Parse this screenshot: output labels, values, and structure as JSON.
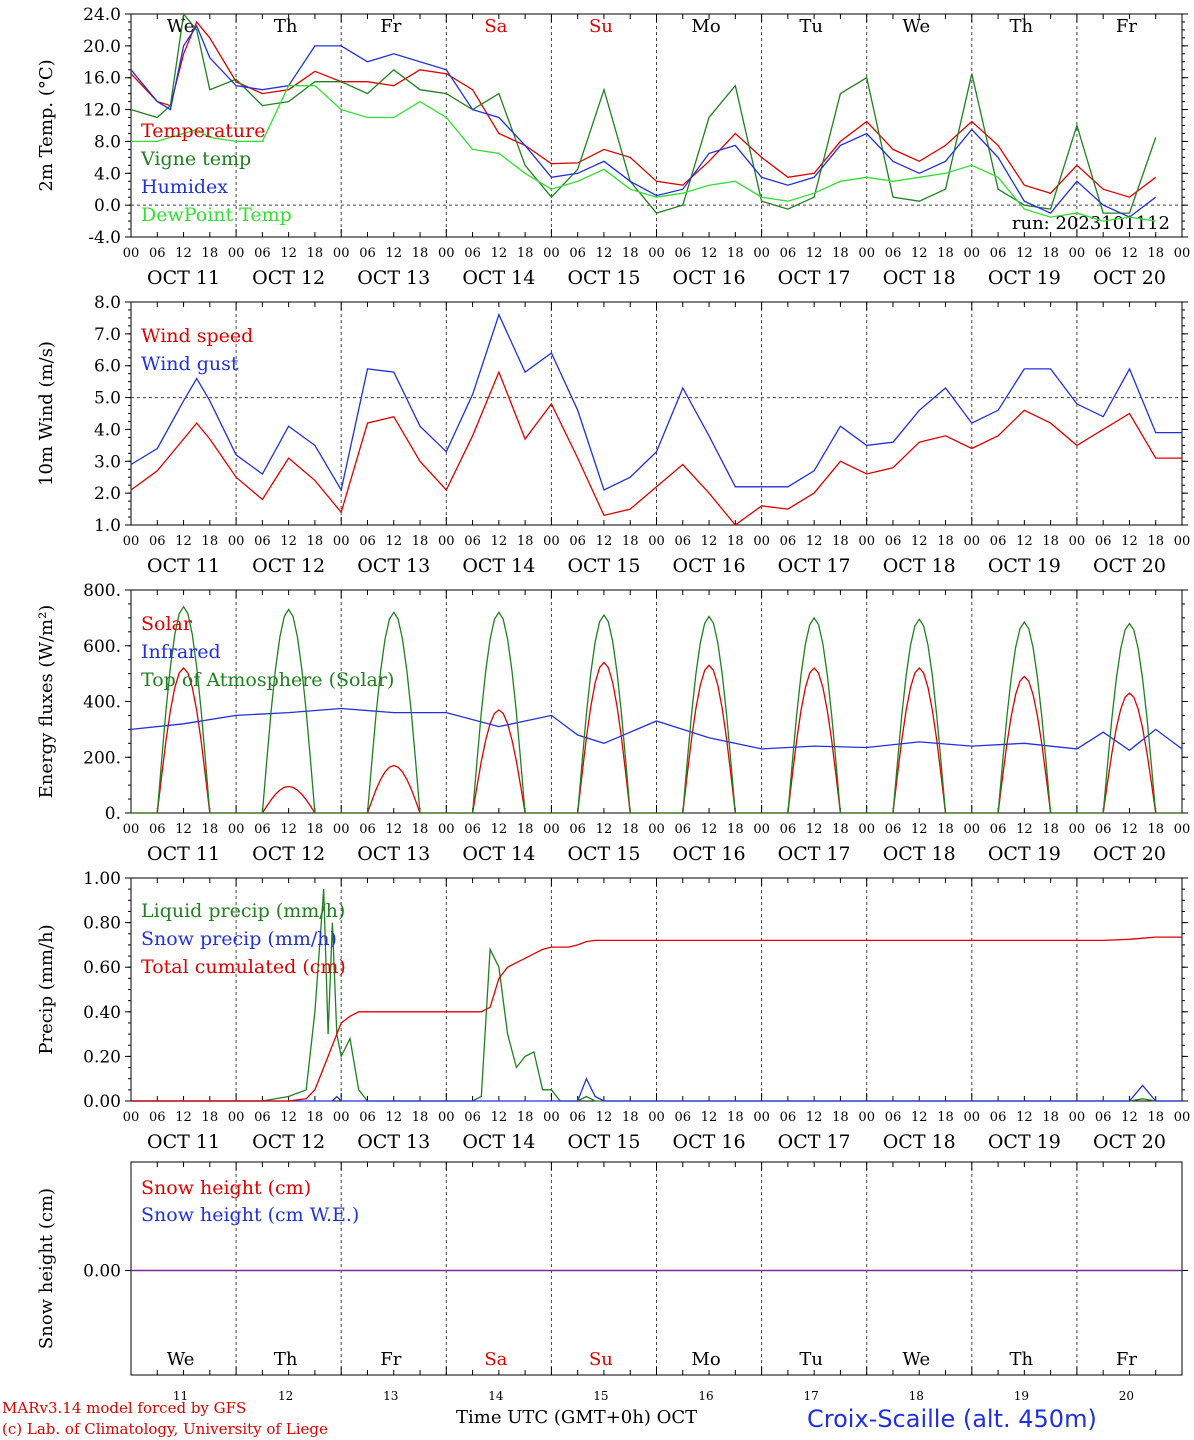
{
  "footer": {
    "model_line": "MARv3.14 model forced by GFS",
    "lab_line": "(c) Lab. of Climatology, University of Liege",
    "xlabel": "Time UTC (GMT+0h) OCT",
    "station": "Croix-Scaille (alt. 450m)"
  },
  "run_label": "run: 2023101112",
  "days": {
    "weekday_labels": [
      "We",
      "Th",
      "Fr",
      "Sa",
      "Su",
      "Mo",
      "Tu",
      "We",
      "Th",
      "Fr"
    ],
    "weekend_color": "#e00000",
    "date_labels": [
      "OCT 11",
      "OCT 12",
      "OCT 13",
      "OCT 14",
      "OCT 15",
      "OCT 16",
      "OCT 17",
      "OCT 18",
      "OCT 19",
      "OCT 20"
    ],
    "day_numbers": [
      "11",
      "12",
      "13",
      "14",
      "15",
      "16",
      "17",
      "18",
      "19",
      "20"
    ],
    "hour_ticks": [
      "00",
      "06",
      "12",
      "18"
    ],
    "final_tick": "00"
  },
  "chart_data": [
    {
      "type": "line",
      "ylabel": "2m Temp. (°C)",
      "ylim": [
        -4,
        24
      ],
      "yticks": [
        "-4.0",
        "0.0",
        "4.0",
        "8.0",
        "12.0",
        "16.0",
        "20.0",
        "24.0"
      ],
      "ytick_values": [
        -4,
        0,
        4,
        8,
        12,
        16,
        20,
        24
      ],
      "reference_line": 0,
      "x_hours": [
        0,
        6,
        9,
        12,
        15,
        18,
        24,
        30,
        36,
        42,
        48,
        54,
        60,
        66,
        72,
        78,
        84,
        90,
        96,
        102,
        108,
        114,
        120,
        126,
        132,
        138,
        144,
        150,
        156,
        162,
        168,
        174,
        180,
        186,
        192,
        198,
        204,
        210,
        216,
        222,
        228,
        234
      ],
      "series": [
        {
          "name": "Temperature",
          "color": "#e00000",
          "values": [
            16.5,
            13,
            12.5,
            19,
            23,
            21,
            15.5,
            14,
            14.5,
            16.8,
            15.5,
            15.5,
            15,
            17,
            16.5,
            14.5,
            9,
            7.5,
            5.2,
            5.3,
            7,
            6,
            3,
            2.5,
            5.5,
            9,
            6,
            3.5,
            4,
            8,
            10.5,
            7,
            5.5,
            7.5,
            10.5,
            7.5,
            2.5,
            1.5,
            5,
            2,
            1,
            3.5
          ]
        },
        {
          "name": "Vigne temp",
          "color": "#208020",
          "values": [
            12,
            11,
            12.5,
            24,
            22,
            14.5,
            15.8,
            12.5,
            13,
            15.5,
            15.5,
            14,
            17,
            14.5,
            14,
            12,
            14,
            5,
            1,
            4.5,
            14.5,
            3,
            -1,
            0,
            11,
            15,
            0.5,
            -0.5,
            1,
            14,
            16,
            1,
            0.5,
            2,
            16.5,
            2,
            0,
            -0.5,
            10,
            -1,
            -1,
            8.5
          ]
        },
        {
          "name": "Humidex",
          "color": "#2030e0",
          "values": [
            17,
            13,
            12,
            20,
            22.5,
            18.5,
            15,
            14.5,
            15,
            20,
            20,
            18,
            19,
            18,
            17,
            12,
            11,
            7.5,
            3.5,
            4,
            5.5,
            3,
            1.2,
            2,
            6.5,
            7.5,
            3.5,
            2.5,
            3.5,
            7.5,
            9,
            5.5,
            4,
            5.5,
            9.5,
            6,
            0.5,
            -1,
            3,
            0,
            -1.5,
            1
          ]
        },
        {
          "name": "DewPoint Temp",
          "color": "#30e030",
          "values": [
            8,
            8,
            8.5,
            9,
            9.5,
            8.5,
            8,
            8,
            15,
            15,
            12,
            11,
            11,
            13,
            11,
            7,
            6.5,
            4,
            2,
            3,
            4.5,
            2,
            1,
            1.5,
            2.5,
            3,
            1,
            0.5,
            1.5,
            3,
            3.5,
            3,
            3.5,
            4,
            5,
            3.5,
            -0.5,
            -1.5,
            -1,
            -2,
            -1.5,
            -2
          ]
        }
      ]
    },
    {
      "type": "line",
      "ylabel": "10m Wind (m/s)",
      "ylim": [
        1,
        8
      ],
      "yticks": [
        "1.0",
        "2.0",
        "3.0",
        "4.0",
        "5.0",
        "6.0",
        "7.0",
        "8.0"
      ],
      "ytick_values": [
        1,
        2,
        3,
        4,
        5,
        6,
        7,
        8
      ],
      "reference_line": 5,
      "x_hours": [
        0,
        6,
        12,
        15,
        18,
        24,
        30,
        36,
        42,
        48,
        54,
        60,
        66,
        72,
        78,
        84,
        90,
        96,
        102,
        108,
        114,
        120,
        126,
        132,
        138,
        144,
        150,
        156,
        162,
        168,
        174,
        180,
        186,
        192,
        198,
        204,
        210,
        216,
        222,
        228,
        234,
        240
      ],
      "series": [
        {
          "name": "Wind speed",
          "color": "#e00000",
          "values": [
            2.1,
            2.7,
            3.7,
            4.2,
            3.7,
            2.5,
            1.8,
            3.1,
            2.4,
            1.4,
            4.2,
            4.4,
            3,
            2.1,
            3.8,
            5.8,
            3.7,
            4.8,
            3.1,
            1.3,
            1.5,
            2.2,
            2.9,
            2,
            1,
            1.6,
            1.5,
            2,
            3,
            2.6,
            2.8,
            3.6,
            3.8,
            3.4,
            3.8,
            4.6,
            4.2,
            3.5,
            4,
            4.5,
            3.1,
            3.1
          ]
        },
        {
          "name": "Wind gust",
          "color": "#2030e0",
          "values": [
            2.9,
            3.4,
            4.9,
            5.6,
            4.9,
            3.2,
            2.6,
            4.1,
            3.5,
            2.1,
            5.9,
            5.8,
            4.1,
            3.3,
            5.1,
            7.6,
            5.8,
            6.4,
            4.6,
            2.1,
            2.5,
            3.3,
            5.3,
            3.8,
            2.2,
            2.2,
            2.2,
            2.7,
            4.1,
            3.5,
            3.6,
            4.6,
            5.3,
            4.2,
            4.6,
            5.9,
            5.9,
            4.8,
            4.4,
            5.9,
            3.9,
            3.9
          ]
        }
      ]
    },
    {
      "type": "line",
      "ylabel": "Energy fluxes (W/m²)",
      "ylim": [
        0,
        800
      ],
      "yticks": [
        "0.",
        "200.",
        "400.",
        "600.",
        "800."
      ],
      "ytick_values": [
        0,
        200,
        400,
        600,
        800
      ],
      "daily_peaks": {
        "peak_hour": 12,
        "half_width_hours": 6,
        "series": [
          {
            "name": "Solar",
            "color": "#e00000",
            "peaks": [
              520,
              95,
              170,
              370,
              540,
              530,
              520,
              520,
              490,
              430
            ]
          },
          {
            "name": "Infrared",
            "color": "#2030e0",
            "x_hours": [
              0,
              12,
              24,
              36,
              48,
              60,
              72,
              84,
              96,
              102,
              108,
              120,
              132,
              144,
              156,
              168,
              180,
              192,
              204,
              216,
              222,
              228,
              234,
              240
            ],
            "values": [
              300,
              320,
              350,
              360,
              375,
              360,
              360,
              310,
              350,
              280,
              250,
              330,
              270,
              230,
              240,
              235,
              255,
              240,
              250,
              230,
              290,
              225,
              300,
              230
            ]
          },
          {
            "name": "Top of Atmosphere (Solar)",
            "color": "#208020",
            "peaks": [
              740,
              730,
              720,
              720,
              710,
              705,
              700,
              695,
              685,
              680
            ]
          }
        ]
      }
    },
    {
      "type": "line",
      "ylabel": "Precip (mm/h)",
      "ylim": [
        0,
        1
      ],
      "yticks": [
        "0.00",
        "0.20",
        "0.40",
        "0.60",
        "0.80",
        "1.00"
      ],
      "ytick_values": [
        0,
        0.2,
        0.4,
        0.6,
        0.8,
        1
      ],
      "x_hours": [
        0,
        30,
        36,
        40,
        42,
        44,
        45,
        46,
        47,
        48,
        50,
        52,
        54,
        60,
        70,
        78,
        80,
        82,
        84,
        86,
        88,
        90,
        92,
        94,
        96,
        98,
        100,
        102,
        104,
        106,
        108,
        110,
        112,
        114,
        210,
        222,
        228,
        231,
        234,
        240
      ],
      "series": [
        {
          "name": "Liquid precip (mm/h)",
          "color": "#208020",
          "values": [
            0,
            0,
            0.02,
            0.05,
            0.4,
            0.95,
            0.3,
            0.8,
            0.3,
            0.2,
            0.28,
            0.05,
            0,
            0,
            0,
            0,
            0.02,
            0.68,
            0.6,
            0.3,
            0.15,
            0.2,
            0.22,
            0.05,
            0.05,
            0,
            0,
            0,
            0.02,
            0,
            0,
            0,
            0,
            0,
            0,
            0,
            0,
            0.01,
            0,
            0
          ]
        },
        {
          "name": "Snow precip (mm/h)",
          "color": "#2030e0",
          "values": [
            0,
            0,
            0,
            0,
            0,
            0,
            0,
            0,
            0.02,
            0,
            0,
            0,
            0,
            0,
            0,
            0,
            0,
            0,
            0,
            0,
            0,
            0,
            0,
            0,
            0,
            0,
            0,
            0,
            0.1,
            0.02,
            0,
            0,
            0,
            0,
            0,
            0,
            0,
            0.07,
            0,
            0
          ]
        },
        {
          "name": "Total cumulated (cm)",
          "color": "#e00000",
          "values": [
            0,
            0,
            0,
            0.01,
            0.05,
            0.15,
            0.2,
            0.25,
            0.3,
            0.35,
            0.38,
            0.4,
            0.4,
            0.4,
            0.4,
            0.4,
            0.4,
            0.42,
            0.55,
            0.6,
            0.62,
            0.64,
            0.66,
            0.68,
            0.69,
            0.69,
            0.69,
            0.7,
            0.715,
            0.72,
            0.72,
            0.72,
            0.72,
            0.72,
            0.72,
            0.72,
            0.725,
            0.73,
            0.735,
            0.735
          ]
        }
      ]
    },
    {
      "type": "line",
      "ylabel": "Snow height (cm)",
      "yticks": [
        "0.00"
      ],
      "ytick_values": [
        0
      ],
      "series": [
        {
          "name": "Snow height (cm)",
          "color": "#e00000",
          "values": [
            0,
            0
          ]
        },
        {
          "name": "Snow height (cm W.E.)",
          "color": "#2030e0",
          "values": [
            0,
            0
          ]
        }
      ],
      "x_hours": [
        0,
        240
      ]
    }
  ]
}
